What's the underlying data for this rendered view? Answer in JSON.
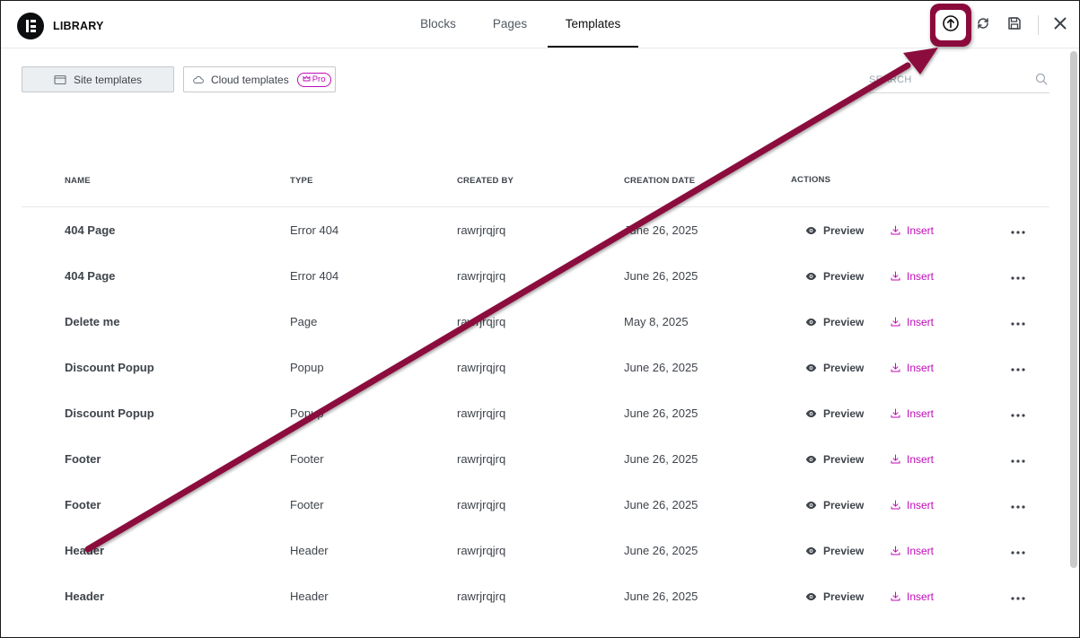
{
  "header": {
    "logo_label": "LIBRARY",
    "tabs": [
      {
        "label": "Blocks",
        "active": false
      },
      {
        "label": "Pages",
        "active": false
      },
      {
        "label": "Templates",
        "active": true
      }
    ],
    "icons": [
      "upload-icon",
      "sync-icon",
      "save-icon",
      "close-icon"
    ]
  },
  "toolbar": {
    "site_templates": "Site templates",
    "cloud_templates": "Cloud templates",
    "pro_badge": "Pro",
    "search_placeholder": "SEARCH"
  },
  "table": {
    "columns": [
      "NAME",
      "TYPE",
      "CREATED BY",
      "CREATION DATE",
      "ACTIONS"
    ],
    "preview_label": "Preview",
    "insert_label": "Insert",
    "rows": [
      {
        "name": "404 Page",
        "type": "Error 404",
        "created_by": "rawrjrqjrq",
        "date": "June 26, 2025"
      },
      {
        "name": "404 Page",
        "type": "Error 404",
        "created_by": "rawrjrqjrq",
        "date": "June 26, 2025"
      },
      {
        "name": "Delete me",
        "type": "Page",
        "created_by": "rawrjrqjrq",
        "date": "May 8, 2025"
      },
      {
        "name": "Discount Popup",
        "type": "Popup",
        "created_by": "rawrjrqjrq",
        "date": "June 26, 2025"
      },
      {
        "name": "Discount Popup",
        "type": "Popup",
        "created_by": "rawrjrqjrq",
        "date": "June 26, 2025"
      },
      {
        "name": "Footer",
        "type": "Footer",
        "created_by": "rawrjrqjrq",
        "date": "June 26, 2025"
      },
      {
        "name": "Footer",
        "type": "Footer",
        "created_by": "rawrjrqjrq",
        "date": "June 26, 2025"
      },
      {
        "name": "Header",
        "type": "Header",
        "created_by": "rawrjrqjrq",
        "date": "June 26, 2025"
      },
      {
        "name": "Header",
        "type": "Header",
        "created_by": "rawrjrqjrq",
        "date": "June 26, 2025"
      }
    ]
  },
  "colors": {
    "accent": "#c00bb9",
    "annotation": "#8b0a3c",
    "text_primary": "#0c0d0e",
    "text_secondary": "#3f444b"
  }
}
